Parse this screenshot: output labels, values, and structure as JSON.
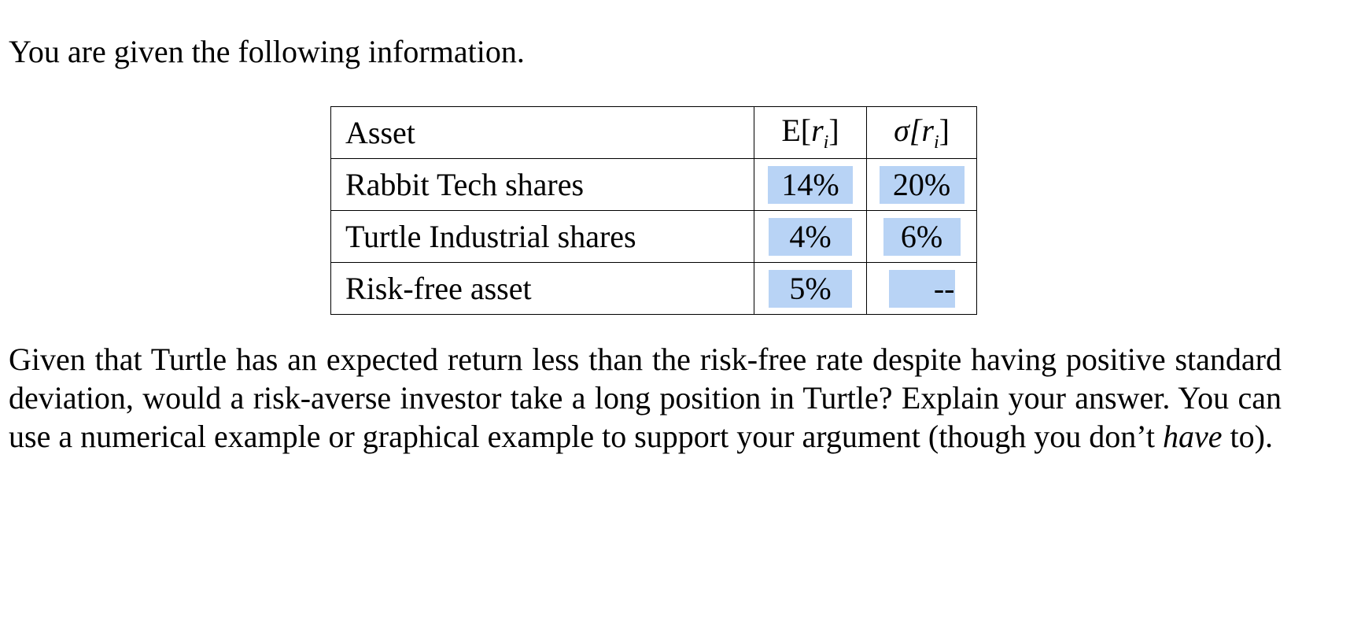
{
  "intro_text": "You are given the following information.",
  "table": {
    "headers": {
      "asset": "Asset",
      "expected_return_prefix": "E[",
      "expected_return_var": "r",
      "expected_return_sub": "i",
      "expected_return_suffix": "]",
      "std_dev_prefix": "σ[",
      "std_dev_var": "r",
      "std_dev_sub": "i",
      "std_dev_suffix": "]"
    },
    "rows": [
      {
        "asset": "Rabbit Tech shares",
        "expected_return": "14%",
        "std_dev": "20%"
      },
      {
        "asset": "Turtle Industrial shares",
        "expected_return": "4%",
        "std_dev": "6%"
      },
      {
        "asset": "Risk-free asset",
        "expected_return": "5%",
        "std_dev": "--"
      }
    ],
    "highlight_color": "#b8d3f5"
  },
  "question": {
    "text_before_italic": "Given that Turtle has an expected return less than the risk-free rate despite having positive standard deviation, would a risk-averse investor take a long position in Turtle? Explain your answer. You can use a numerical example or graphical example to support your argument (though you don’t ",
    "italic_word": "have",
    "text_after_italic": " to)."
  }
}
